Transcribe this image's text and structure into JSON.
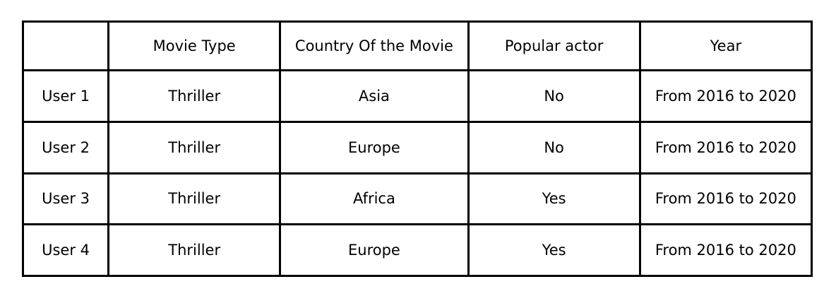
{
  "table": {
    "headers": [
      "",
      "Movie Type",
      "Country Of the Movie",
      "Popular actor",
      "Year"
    ],
    "rows": [
      [
        "User 1",
        "Thriller",
        "Asia",
        "No",
        "From 2016 to 2020"
      ],
      [
        "User 2",
        "Thriller",
        "Europe",
        "No",
        "From 2016 to 2020"
      ],
      [
        "User 3",
        "Thriller",
        "Africa",
        "Yes",
        "From 2016 to 2020"
      ],
      [
        "User 4",
        "Thriller",
        "Europe",
        "Yes",
        "From 2016 to 2020"
      ]
    ]
  }
}
